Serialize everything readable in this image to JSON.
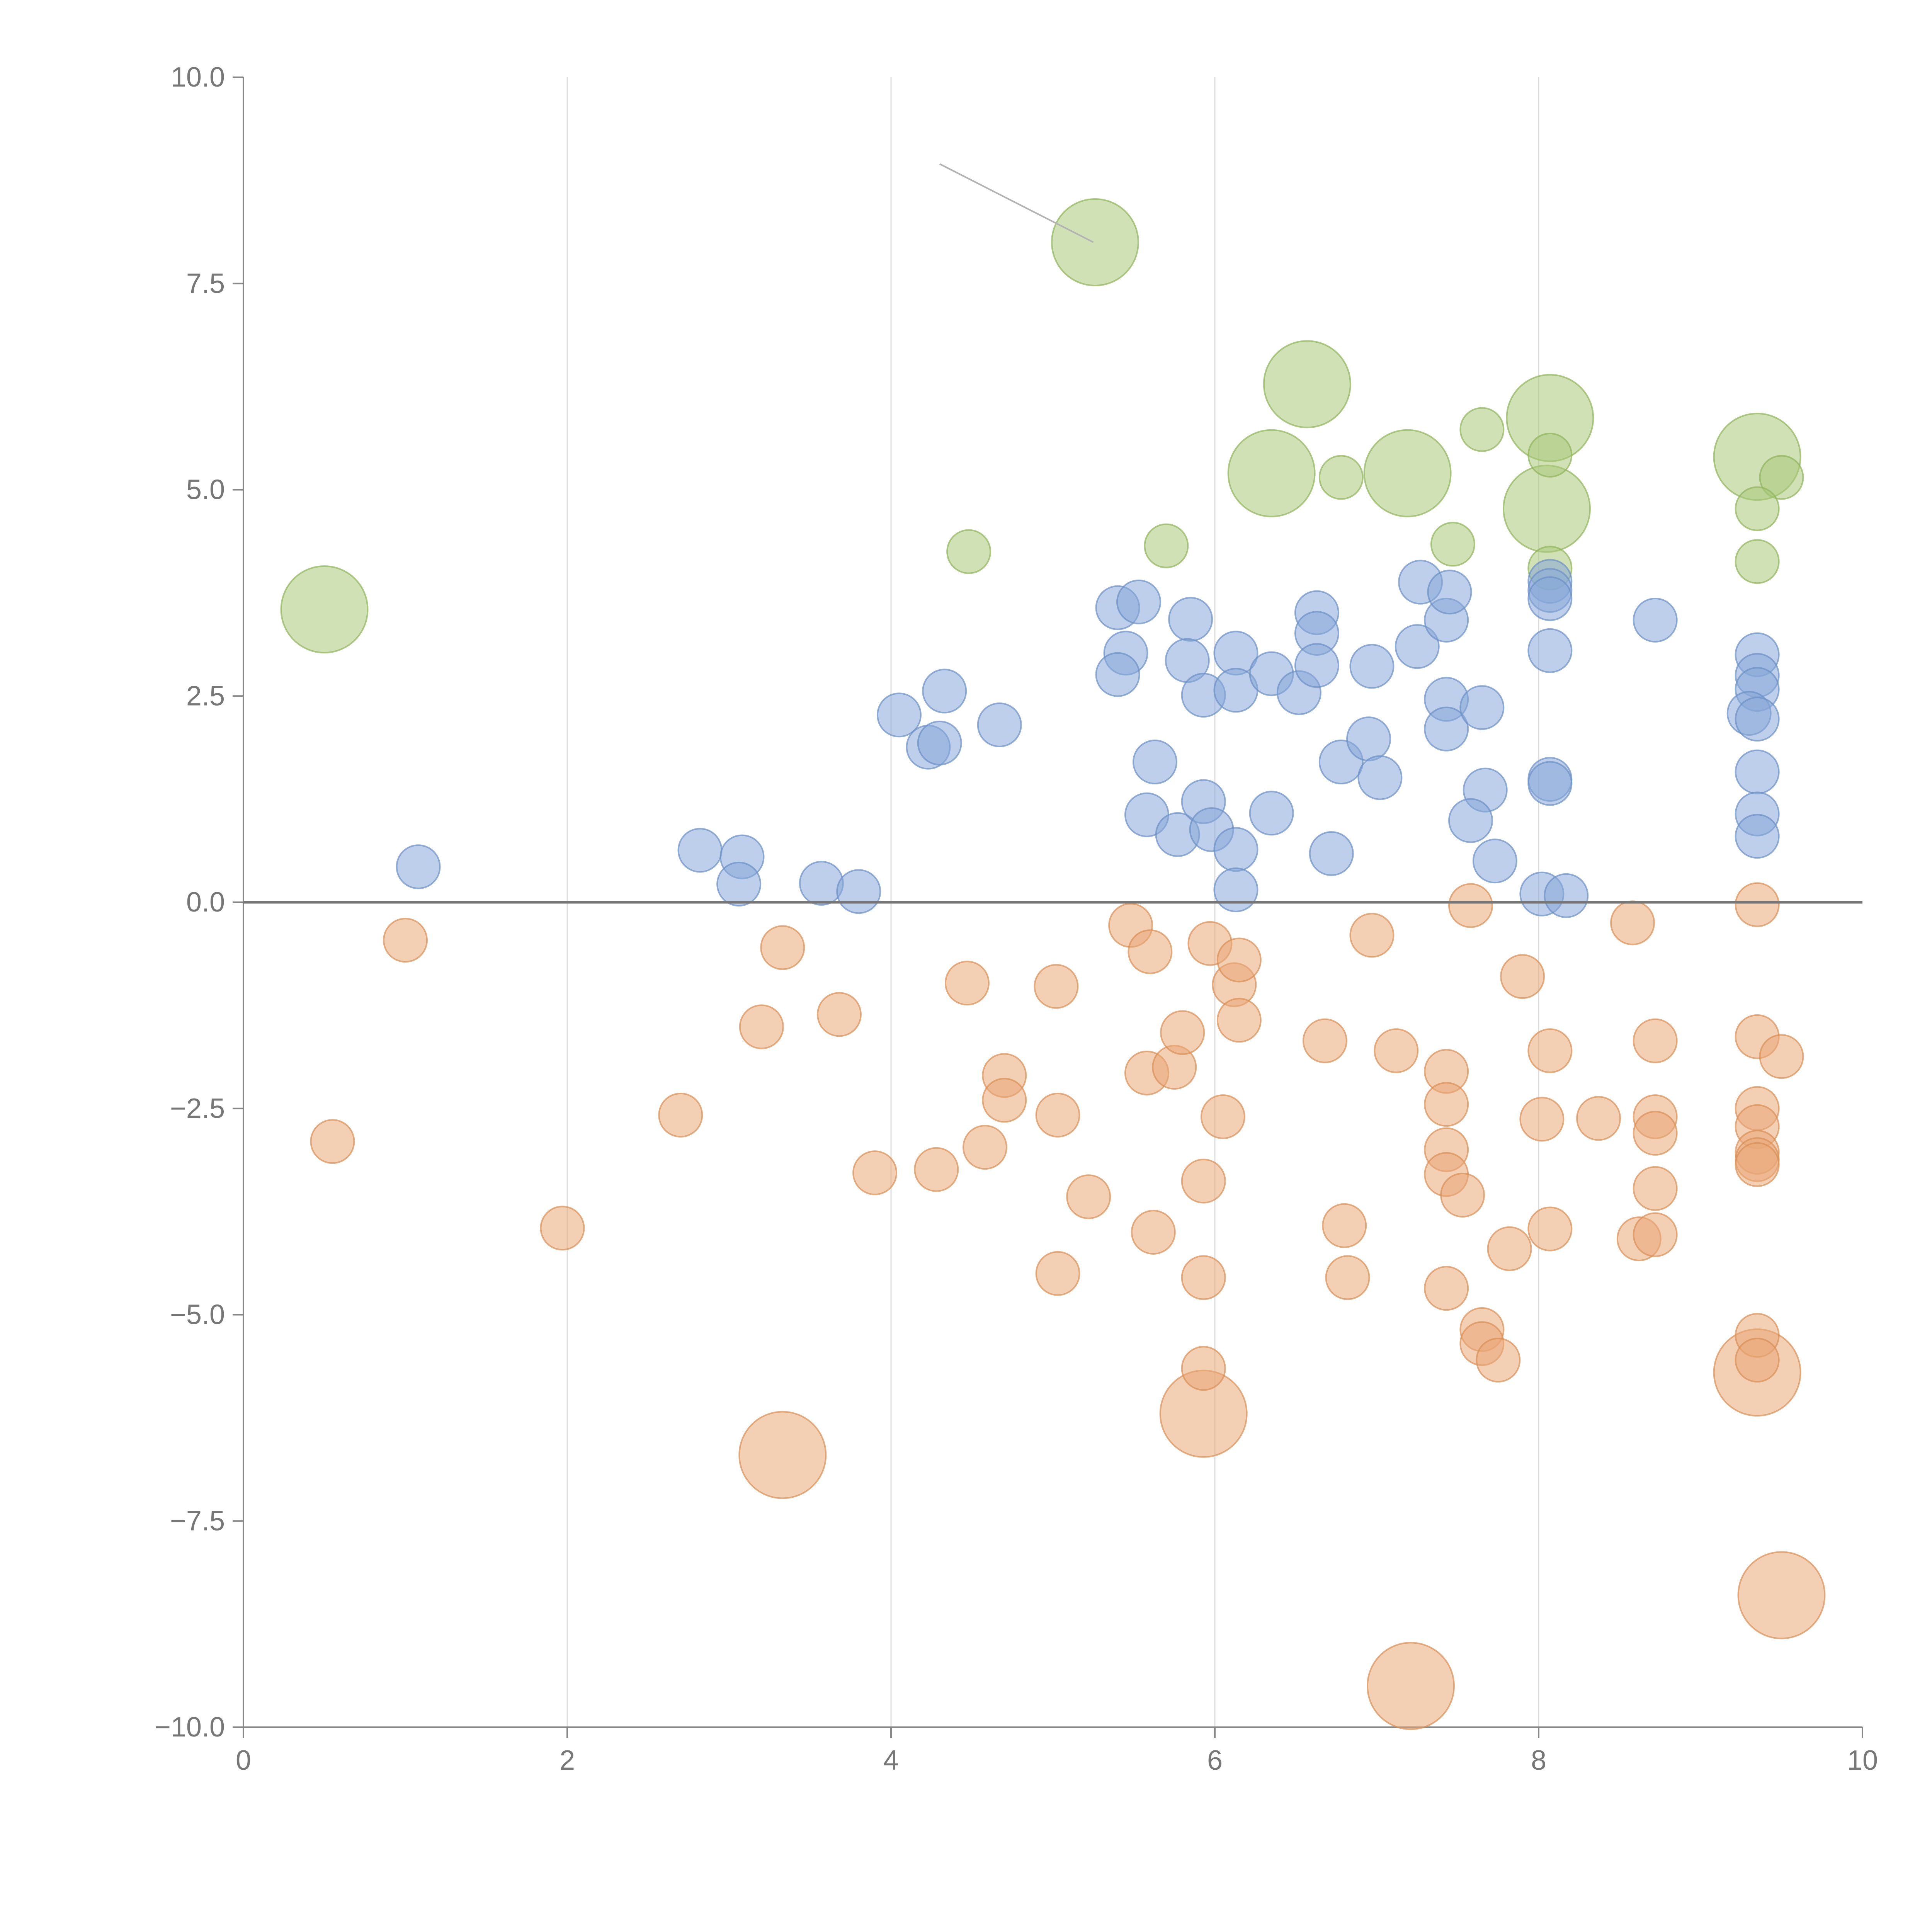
{
  "chart_data": {
    "type": "scatter",
    "title": "",
    "xlabel": "",
    "ylabel": "",
    "xlim": [
      0,
      10
    ],
    "ylim": [
      -10,
      10
    ],
    "x_ticks": [
      0,
      2,
      4,
      6,
      8,
      10
    ],
    "x_tick_labels": [
      "0",
      "2",
      "4",
      "6",
      "8",
      "10"
    ],
    "y_ticks": [
      10,
      7.5,
      5,
      2.5,
      0,
      -2.5,
      -5,
      -7.5,
      -10
    ],
    "y_tick_labels": [
      "10.0",
      "7.5",
      "5.0",
      "2.5",
      "0.0",
      "−2.5",
      "−5.0",
      "−7.5",
      "−10.0"
    ],
    "grid": "vertical",
    "baseline_y": 0,
    "size_unit_note": "size values are relative bubble radii (1 = standard bubble)",
    "annotations": [
      {
        "type": "leader-line",
        "from": [
          4.3,
          8.95
        ],
        "to": [
          5.25,
          8.0
        ]
      }
    ],
    "series": [
      {
        "name": "green",
        "color": "#a9c878",
        "stroke": "#8fb35a",
        "points": [
          [
            5.26,
            8.0,
            2.0
          ],
          [
            0.5,
            3.55,
            2.0
          ],
          [
            6.57,
            6.28,
            2.0
          ],
          [
            8.07,
            5.87,
            2.0
          ],
          [
            9.35,
            5.4,
            2.0
          ],
          [
            6.35,
            5.2,
            2.0
          ],
          [
            7.19,
            5.2,
            2.0
          ],
          [
            8.05,
            4.77,
            2.0
          ],
          [
            7.65,
            5.73,
            1.0
          ],
          [
            6.78,
            5.15,
            1.0
          ],
          [
            8.07,
            5.42,
            1.0
          ],
          [
            9.5,
            5.15,
            1.0
          ],
          [
            9.35,
            4.77,
            1.0
          ],
          [
            4.48,
            4.25,
            1.0
          ],
          [
            5.7,
            4.32,
            1.0
          ],
          [
            7.47,
            4.34,
            1.0
          ],
          [
            8.07,
            4.05,
            1.0
          ],
          [
            9.35,
            4.13,
            1.0
          ]
        ]
      },
      {
        "name": "blue",
        "color": "#86a8d8",
        "stroke": "#6b8fc4",
        "points": [
          [
            1.08,
            0.43,
            1.0
          ],
          [
            2.82,
            0.63,
            1.0
          ],
          [
            3.08,
            0.55,
            1.0
          ],
          [
            3.06,
            0.22,
            1.0
          ],
          [
            3.57,
            0.23,
            1.0
          ],
          [
            3.8,
            0.13,
            1.0
          ],
          [
            4.05,
            2.27,
            1.0
          ],
          [
            4.23,
            1.88,
            1.0
          ],
          [
            4.3,
            1.93,
            1.0
          ],
          [
            4.33,
            2.56,
            1.0
          ],
          [
            4.67,
            2.15,
            1.0
          ],
          [
            5.4,
            3.57,
            1.0
          ],
          [
            5.53,
            3.64,
            1.0
          ],
          [
            5.45,
            3.02,
            1.0
          ],
          [
            5.4,
            2.76,
            1.0
          ],
          [
            5.63,
            1.7,
            1.0
          ],
          [
            5.58,
            1.06,
            1.0
          ],
          [
            5.77,
            0.82,
            1.0
          ],
          [
            5.85,
            3.43,
            1.0
          ],
          [
            5.83,
            2.93,
            1.0
          ],
          [
            5.93,
            2.51,
            1.0
          ],
          [
            5.93,
            1.22,
            1.0
          ],
          [
            5.98,
            0.88,
            1.0
          ],
          [
            6.13,
            3.02,
            1.0
          ],
          [
            6.13,
            2.57,
            1.0
          ],
          [
            6.13,
            0.64,
            1.0
          ],
          [
            6.13,
            0.15,
            1.0
          ],
          [
            6.35,
            2.77,
            1.0
          ],
          [
            6.35,
            1.08,
            1.0
          ],
          [
            6.52,
            2.54,
            1.0
          ],
          [
            6.63,
            3.51,
            1.0
          ],
          [
            6.63,
            3.26,
            1.0
          ],
          [
            6.63,
            2.87,
            1.0
          ],
          [
            6.72,
            0.59,
            1.0
          ],
          [
            6.78,
            1.7,
            1.0
          ],
          [
            6.97,
            2.86,
            1.0
          ],
          [
            6.95,
            1.98,
            1.0
          ],
          [
            7.02,
            1.51,
            1.0
          ],
          [
            7.25,
            3.1,
            1.0
          ],
          [
            7.27,
            3.88,
            1.0
          ],
          [
            7.43,
            3.42,
            1.0
          ],
          [
            7.45,
            3.76,
            1.0
          ],
          [
            7.43,
            2.46,
            1.0
          ],
          [
            7.43,
            2.1,
            1.0
          ],
          [
            7.65,
            2.36,
            1.0
          ],
          [
            7.67,
            1.36,
            1.0
          ],
          [
            7.58,
            0.99,
            1.0
          ],
          [
            7.73,
            0.5,
            1.0
          ],
          [
            8.07,
            3.89,
            1.0
          ],
          [
            8.07,
            3.78,
            1.0
          ],
          [
            8.07,
            3.68,
            1.0
          ],
          [
            8.07,
            3.05,
            1.0
          ],
          [
            8.07,
            1.49,
            1.0
          ],
          [
            8.07,
            1.44,
            1.0
          ],
          [
            8.02,
            0.1,
            1.0
          ],
          [
            8.17,
            0.08,
            1.0
          ],
          [
            8.72,
            3.42,
            1.0
          ],
          [
            9.35,
            3.0,
            1.0
          ],
          [
            9.35,
            2.75,
            1.0
          ],
          [
            9.35,
            2.58,
            1.0
          ],
          [
            9.3,
            2.29,
            1.0
          ],
          [
            9.35,
            2.22,
            1.0
          ],
          [
            9.35,
            1.58,
            1.0
          ],
          [
            9.35,
            1.07,
            1.0
          ],
          [
            9.35,
            0.8,
            1.0
          ]
        ]
      },
      {
        "name": "orange",
        "color": "#e9a876",
        "stroke": "#d88e55",
        "points": [
          [
            3.33,
            -6.7,
            2.0
          ],
          [
            5.93,
            -6.2,
            2.0
          ],
          [
            9.35,
            -5.7,
            2.0
          ],
          [
            9.5,
            -8.4,
            2.0
          ],
          [
            7.21,
            -9.5,
            2.0
          ],
          [
            0.55,
            -2.9,
            1.0
          ],
          [
            1.0,
            -0.46,
            1.0
          ],
          [
            1.97,
            -3.95,
            1.0
          ],
          [
            2.7,
            -2.58,
            1.0
          ],
          [
            3.2,
            -1.51,
            1.0
          ],
          [
            3.33,
            -0.55,
            1.0
          ],
          [
            3.68,
            -1.36,
            1.0
          ],
          [
            3.9,
            -3.28,
            1.0
          ],
          [
            4.28,
            -3.24,
            1.0
          ],
          [
            4.47,
            -0.98,
            1.0
          ],
          [
            4.58,
            -2.97,
            1.0
          ],
          [
            4.7,
            -2.1,
            1.0
          ],
          [
            4.7,
            -2.4,
            1.0
          ],
          [
            5.02,
            -1.02,
            1.0
          ],
          [
            5.03,
            -2.58,
            1.0
          ],
          [
            5.03,
            -4.5,
            1.0
          ],
          [
            5.22,
            -3.57,
            1.0
          ],
          [
            5.48,
            -0.28,
            1.0
          ],
          [
            5.58,
            -2.07,
            1.0
          ],
          [
            5.6,
            -0.6,
            1.0
          ],
          [
            5.62,
            -4.0,
            1.0
          ],
          [
            5.75,
            -2.0,
            1.0
          ],
          [
            5.8,
            -1.58,
            1.0
          ],
          [
            5.93,
            -3.38,
            1.0
          ],
          [
            5.93,
            -4.55,
            1.0
          ],
          [
            5.93,
            -5.65,
            1.0
          ],
          [
            5.97,
            -0.5,
            1.0
          ],
          [
            6.05,
            -2.6,
            1.0
          ],
          [
            6.12,
            -1.0,
            1.0
          ],
          [
            6.15,
            -0.7,
            1.0
          ],
          [
            6.15,
            -1.43,
            1.0
          ],
          [
            6.68,
            -1.68,
            1.0
          ],
          [
            6.8,
            -3.92,
            1.0
          ],
          [
            6.82,
            -4.55,
            1.0
          ],
          [
            6.97,
            -0.4,
            1.0
          ],
          [
            7.12,
            -1.8,
            1.0
          ],
          [
            7.43,
            -2.05,
            1.0
          ],
          [
            7.43,
            -2.45,
            1.0
          ],
          [
            7.43,
            -3.0,
            1.0
          ],
          [
            7.43,
            -3.3,
            1.0
          ],
          [
            7.43,
            -4.68,
            1.0
          ],
          [
            7.53,
            -3.55,
            1.0
          ],
          [
            7.58,
            -0.04,
            1.0
          ],
          [
            7.65,
            -5.18,
            1.0
          ],
          [
            7.65,
            -5.35,
            1.0
          ],
          [
            7.75,
            -5.55,
            1.0
          ],
          [
            7.82,
            -4.2,
            1.0
          ],
          [
            7.9,
            -0.9,
            1.0
          ],
          [
            8.02,
            -2.63,
            1.0
          ],
          [
            8.07,
            -1.8,
            1.0
          ],
          [
            8.07,
            -3.96,
            1.0
          ],
          [
            8.37,
            -2.62,
            1.0
          ],
          [
            8.58,
            -0.25,
            1.0
          ],
          [
            8.62,
            -4.08,
            1.0
          ],
          [
            8.72,
            -1.68,
            1.0
          ],
          [
            8.72,
            -2.6,
            1.0
          ],
          [
            8.72,
            -2.8,
            1.0
          ],
          [
            8.72,
            -3.47,
            1.0
          ],
          [
            8.72,
            -4.03,
            1.0
          ],
          [
            9.35,
            -0.03,
            1.0
          ],
          [
            9.35,
            -1.63,
            1.0
          ],
          [
            9.35,
            -2.5,
            1.0
          ],
          [
            9.35,
            -2.72,
            1.0
          ],
          [
            9.35,
            -3.03,
            1.0
          ],
          [
            9.35,
            -3.12,
            1.0
          ],
          [
            9.35,
            -3.18,
            1.0
          ],
          [
            9.35,
            -5.25,
            1.0
          ],
          [
            9.35,
            -5.55,
            1.0
          ],
          [
            9.5,
            -1.87,
            1.0
          ]
        ]
      }
    ]
  }
}
